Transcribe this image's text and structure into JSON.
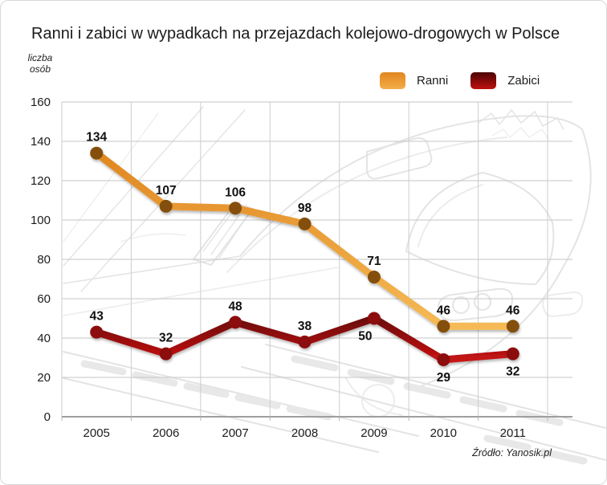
{
  "labels": {
    "ylabel_lines": [
      "liczba",
      "osób"
    ]
  },
  "chart_data": {
    "type": "line",
    "title": "Ranni i zabici w wypadkach na przejazdach kolejowo-drogowych w Polsce",
    "x": [
      "2005",
      "2006",
      "2007",
      "2008",
      "2009",
      "2010",
      "2011"
    ],
    "series": [
      {
        "name": "Ranni",
        "values": [
          134,
          107,
          106,
          98,
          71,
          46,
          46
        ],
        "line_gradient": [
          "#E0851E",
          "#F6BC58"
        ],
        "legend_swatch_gradient": [
          "#E1861F",
          "#F3AE49"
        ],
        "marker_color": "#84500E",
        "value_label_positions": [
          "above",
          "above",
          "above",
          "above",
          "above",
          "above",
          "above"
        ]
      },
      {
        "name": "Zabici",
        "values": [
          43,
          32,
          48,
          38,
          50,
          29,
          32
        ],
        "line_gradient": [
          "#5C0505",
          "#D41515"
        ],
        "legend_swatch_gradient": [
          "#4A0404",
          "#C01010"
        ],
        "marker_color": "#8C0909",
        "value_label_positions": [
          "above",
          "above",
          "above",
          "above",
          "below-left",
          "below",
          "below"
        ]
      }
    ],
    "ylabel": "liczba osób",
    "ylim": [
      0,
      160
    ],
    "ytick_step": 20,
    "grid": true,
    "legend_position": "top-right",
    "source": "Źródło: Yanosik.pl"
  }
}
